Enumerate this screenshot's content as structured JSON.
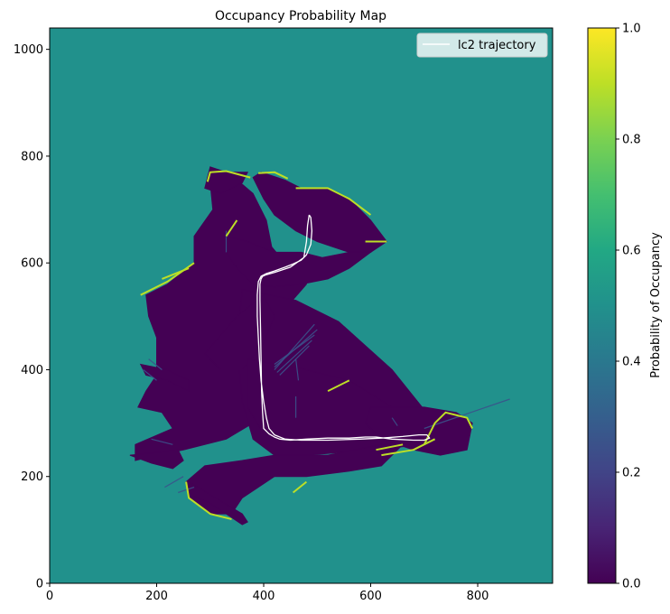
{
  "chart_data": {
    "type": "heatmap",
    "title": "Occupancy Probability Map",
    "xlabel": "",
    "ylabel": "",
    "xlim": [
      0,
      940
    ],
    "ylim": [
      0,
      1040
    ],
    "x_ticks": [
      0,
      200,
      400,
      600,
      800
    ],
    "y_ticks": [
      0,
      200,
      400,
      600,
      800,
      1000
    ],
    "background_value": 0.5,
    "colormap": "viridis",
    "colorbar": {
      "label": "Probability of Occupancy",
      "range": [
        0,
        1
      ],
      "ticks": [
        "0.0",
        "0.2",
        "0.4",
        "0.6",
        "0.8",
        "1.0"
      ]
    },
    "legend": {
      "position": "top-right",
      "entries": [
        "lc2 trajectory"
      ]
    },
    "free_regions": [
      [
        [
          180,
          540
        ],
        [
          220,
          560
        ],
        [
          270,
          600
        ],
        [
          270,
          650
        ],
        [
          305,
          700
        ],
        [
          300,
          750
        ],
        [
          345,
          760
        ],
        [
          380,
          730
        ],
        [
          405,
          680
        ],
        [
          415,
          630
        ],
        [
          440,
          600
        ],
        [
          470,
          600
        ],
        [
          480,
          560
        ],
        [
          445,
          520
        ],
        [
          420,
          500
        ],
        [
          480,
          470
        ],
        [
          400,
          380
        ],
        [
          380,
          300
        ],
        [
          330,
          270
        ],
        [
          250,
          250
        ],
        [
          200,
          240
        ],
        [
          160,
          230
        ],
        [
          160,
          260
        ],
        [
          230,
          290
        ],
        [
          210,
          320
        ],
        [
          165,
          330
        ],
        [
          180,
          360
        ],
        [
          200,
          390
        ],
        [
          200,
          460
        ],
        [
          185,
          500
        ]
      ],
      [
        [
          300,
          780
        ],
        [
          330,
          770
        ],
        [
          370,
          770
        ],
        [
          360,
          750
        ],
        [
          320,
          730
        ],
        [
          290,
          740
        ]
      ],
      [
        [
          380,
          760
        ],
        [
          395,
          770
        ],
        [
          440,
          755
        ],
        [
          470,
          740
        ],
        [
          520,
          740
        ],
        [
          560,
          720
        ],
        [
          600,
          680
        ],
        [
          630,
          640
        ],
        [
          600,
          620
        ],
        [
          560,
          620
        ],
        [
          500,
          640
        ],
        [
          460,
          660
        ],
        [
          420,
          690
        ],
        [
          400,
          720
        ]
      ],
      [
        [
          330,
          650
        ],
        [
          370,
          640
        ],
        [
          420,
          620
        ],
        [
          470,
          620
        ],
        [
          510,
          610
        ],
        [
          560,
          620
        ],
        [
          600,
          620
        ],
        [
          560,
          590
        ],
        [
          520,
          570
        ],
        [
          470,
          560
        ],
        [
          420,
          555
        ],
        [
          380,
          560
        ],
        [
          350,
          590
        ],
        [
          330,
          620
        ]
      ],
      [
        [
          360,
          550
        ],
        [
          460,
          530
        ],
        [
          540,
          490
        ],
        [
          640,
          400
        ],
        [
          720,
          300
        ],
        [
          700,
          260
        ],
        [
          600,
          250
        ],
        [
          480,
          240
        ],
        [
          420,
          240
        ],
        [
          380,
          270
        ],
        [
          360,
          340
        ],
        [
          350,
          450
        ]
      ],
      [
        [
          290,
          430
        ],
        [
          350,
          500
        ],
        [
          400,
          540
        ],
        [
          420,
          500
        ],
        [
          400,
          450
        ],
        [
          360,
          400
        ],
        [
          320,
          400
        ]
      ],
      [
        [
          370,
          420
        ],
        [
          480,
          400
        ],
        [
          560,
          380
        ],
        [
          640,
          330
        ],
        [
          680,
          290
        ],
        [
          640,
          270
        ],
        [
          560,
          270
        ],
        [
          480,
          270
        ],
        [
          400,
          280
        ],
        [
          370,
          330
        ]
      ],
      [
        [
          600,
          330
        ],
        [
          700,
          330
        ],
        [
          760,
          320
        ],
        [
          790,
          300
        ],
        [
          780,
          250
        ],
        [
          730,
          240
        ],
        [
          680,
          250
        ],
        [
          620,
          270
        ],
        [
          590,
          300
        ]
      ],
      [
        [
          255,
          190
        ],
        [
          290,
          220
        ],
        [
          360,
          230
        ],
        [
          420,
          240
        ],
        [
          520,
          240
        ],
        [
          620,
          260
        ],
        [
          660,
          260
        ],
        [
          620,
          220
        ],
        [
          560,
          210
        ],
        [
          480,
          200
        ],
        [
          420,
          200
        ],
        [
          360,
          160
        ],
        [
          340,
          130
        ],
        [
          300,
          130
        ],
        [
          260,
          160
        ]
      ],
      [
        [
          260,
          190
        ],
        [
          360,
          130
        ],
        [
          370,
          115
        ],
        [
          360,
          110
        ],
        [
          300,
          150
        ],
        [
          265,
          165
        ]
      ],
      [
        [
          150,
          240
        ],
        [
          200,
          245
        ],
        [
          240,
          250
        ],
        [
          250,
          230
        ],
        [
          230,
          215
        ],
        [
          190,
          225
        ]
      ],
      [
        [
          170,
          410
        ],
        [
          220,
          400
        ],
        [
          260,
          380
        ],
        [
          260,
          360
        ],
        [
          220,
          380
        ],
        [
          180,
          390
        ]
      ],
      [
        [
          430,
          420
        ],
        [
          490,
          480
        ],
        [
          500,
          480
        ],
        [
          440,
          410
        ]
      ]
    ],
    "occupied_edges": [
      [
        [
          170,
          540
        ],
        [
          220,
          565
        ],
        [
          270,
          600
        ]
      ],
      [
        [
          295,
          752
        ],
        [
          300,
          770
        ],
        [
          330,
          772
        ],
        [
          375,
          760
        ]
      ],
      [
        [
          390,
          768
        ],
        [
          420,
          770
        ],
        [
          445,
          758
        ]
      ],
      [
        [
          460,
          740
        ],
        [
          520,
          740
        ],
        [
          560,
          720
        ],
        [
          600,
          690
        ]
      ],
      [
        [
          590,
          640
        ],
        [
          630,
          640
        ]
      ],
      [
        [
          210,
          570
        ],
        [
          260,
          590
        ]
      ],
      [
        [
          700,
          260
        ],
        [
          720,
          300
        ],
        [
          740,
          320
        ],
        [
          780,
          310
        ],
        [
          790,
          290
        ]
      ],
      [
        [
          620,
          240
        ],
        [
          680,
          250
        ],
        [
          720,
          270
        ]
      ],
      [
        [
          255,
          190
        ],
        [
          260,
          160
        ],
        [
          300,
          130
        ],
        [
          340,
          120
        ]
      ],
      [
        [
          330,
          650
        ],
        [
          350,
          680
        ]
      ],
      [
        [
          520,
          360
        ],
        [
          560,
          380
        ]
      ],
      [
        [
          455,
          170
        ],
        [
          480,
          190
        ]
      ],
      [
        [
          610,
          250
        ],
        [
          660,
          260
        ]
      ]
    ],
    "rays": [
      [
        [
          420,
          400
        ],
        [
          495,
          485
        ]
      ],
      [
        [
          420,
          405
        ],
        [
          500,
          475
        ]
      ],
      [
        [
          420,
          410
        ],
        [
          495,
          465
        ]
      ],
      [
        [
          425,
          395
        ],
        [
          490,
          455
        ]
      ],
      [
        [
          430,
          390
        ],
        [
          485,
          445
        ]
      ],
      [
        [
          700,
          290
        ],
        [
          860,
          345
        ]
      ],
      [
        [
          460,
          350
        ],
        [
          460,
          310
        ]
      ],
      [
        [
          330,
          620
        ],
        [
          330,
          660
        ]
      ],
      [
        [
          460,
          420
        ],
        [
          465,
          380
        ]
      ],
      [
        [
          200,
          380
        ],
        [
          175,
          400
        ]
      ],
      [
        [
          210,
          400
        ],
        [
          185,
          420
        ]
      ],
      [
        [
          230,
          260
        ],
        [
          190,
          270
        ]
      ],
      [
        [
          250,
          200
        ],
        [
          215,
          180
        ]
      ],
      [
        [
          270,
          180
        ],
        [
          240,
          170
        ]
      ],
      [
        [
          640,
          310
        ],
        [
          650,
          295
        ]
      ]
    ],
    "series": [
      {
        "name": "lc2 trajectory",
        "color": "#ffffff",
        "x": [
          485,
          488,
          490,
          488,
          480,
          470,
          455,
          440,
          420,
          405,
          395,
          390,
          388,
          388,
          390,
          392,
          395,
          400,
          405,
          410,
          420,
          440,
          470,
          520,
          580,
          620,
          660,
          690,
          705,
          710,
          700,
          680,
          640,
          610,
          590,
          560,
          520,
          480,
          450,
          430,
          420,
          410,
          400,
          398,
          396,
          395,
          394,
          393,
          393,
          395,
          398,
          405,
          420,
          450,
          475,
          480,
          482,
          485
        ],
        "y": [
          690,
          685,
          660,
          635,
          615,
          605,
          598,
          592,
          585,
          580,
          575,
          565,
          540,
          500,
          460,
          420,
          380,
          340,
          310,
          290,
          278,
          270,
          268,
          268,
          270,
          272,
          275,
          278,
          278,
          272,
          268,
          268,
          270,
          274,
          274,
          272,
          272,
          270,
          268,
          270,
          274,
          280,
          290,
          320,
          360,
          420,
          480,
          530,
          560,
          570,
          575,
          578,
          582,
          592,
          610,
          640,
          670,
          690
        ]
      }
    ]
  }
}
